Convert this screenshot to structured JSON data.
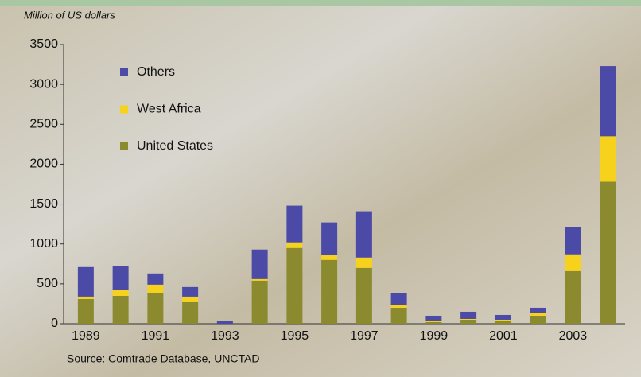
{
  "chart_data": {
    "type": "stacked_bar",
    "y_label": "Million of US dollars",
    "source": "Source: Comtrade Database, UNCTAD",
    "categories": [
      "1989",
      null,
      "1991",
      null,
      "1993",
      null,
      "1995",
      null,
      "1997",
      null,
      "1999",
      null,
      "2001",
      null,
      "2003",
      null
    ],
    "series": [
      {
        "name": "United States",
        "color": "#8c8a2e",
        "values": [
          310,
          350,
          390,
          270,
          0,
          540,
          950,
          800,
          700,
          200,
          20,
          50,
          40,
          100,
          660,
          1780
        ]
      },
      {
        "name": "West Africa",
        "color": "#f7d21c",
        "values": [
          30,
          70,
          100,
          70,
          0,
          20,
          70,
          60,
          130,
          30,
          20,
          10,
          10,
          30,
          210,
          570
        ]
      },
      {
        "name": "Others",
        "color": "#4b4aa6",
        "values": [
          370,
          300,
          140,
          120,
          30,
          370,
          460,
          410,
          580,
          150,
          60,
          90,
          60,
          70,
          340,
          880
        ]
      }
    ],
    "ylim": [
      0,
      3500
    ],
    "yticks": [
      0,
      500,
      1000,
      1500,
      2000,
      2500,
      3000,
      3500
    ],
    "legend": "upper left"
  }
}
